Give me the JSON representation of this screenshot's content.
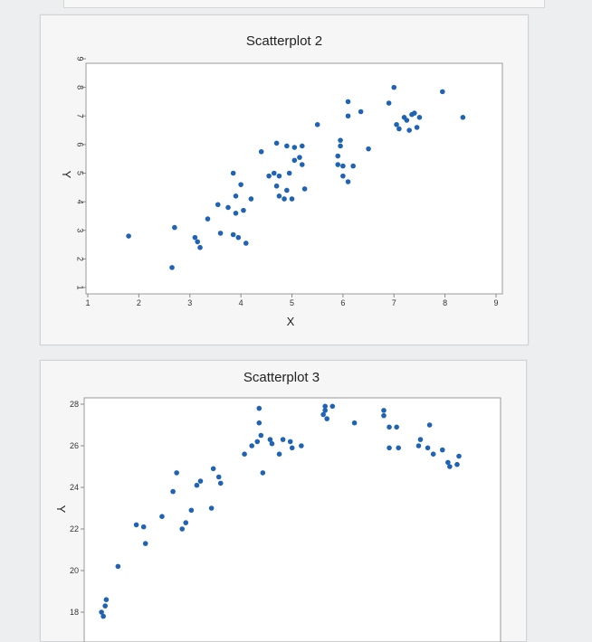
{
  "chart_data": [
    {
      "type": "scatter",
      "title": "Scatterplot 2",
      "xlabel": "X",
      "ylabel": "Y",
      "xlim": [
        1,
        9
      ],
      "ylim": [
        1,
        9
      ],
      "xticks": [
        "1",
        "2",
        "3",
        "4",
        "5",
        "6",
        "7",
        "8",
        "9"
      ],
      "yticks": [
        "1",
        "2",
        "3",
        "4",
        "5",
        "6",
        "7",
        "8",
        "9"
      ],
      "color": "#1f63b5",
      "points": [
        {
          "x": 1.8,
          "y": 2.8
        },
        {
          "x": 2.65,
          "y": 1.7
        },
        {
          "x": 2.7,
          "y": 3.1
        },
        {
          "x": 3.1,
          "y": 2.75
        },
        {
          "x": 3.15,
          "y": 2.6
        },
        {
          "x": 3.2,
          "y": 2.4
        },
        {
          "x": 3.35,
          "y": 3.4
        },
        {
          "x": 3.55,
          "y": 3.9
        },
        {
          "x": 3.6,
          "y": 2.9
        },
        {
          "x": 3.75,
          "y": 3.8
        },
        {
          "x": 3.85,
          "y": 2.85
        },
        {
          "x": 3.85,
          "y": 5.0
        },
        {
          "x": 3.9,
          "y": 4.2
        },
        {
          "x": 3.9,
          "y": 3.6
        },
        {
          "x": 3.95,
          "y": 2.75
        },
        {
          "x": 4.0,
          "y": 4.6
        },
        {
          "x": 4.05,
          "y": 3.7
        },
        {
          "x": 4.1,
          "y": 2.55
        },
        {
          "x": 4.2,
          "y": 4.1
        },
        {
          "x": 4.4,
          "y": 5.75
        },
        {
          "x": 4.55,
          "y": 4.9
        },
        {
          "x": 4.65,
          "y": 5.0
        },
        {
          "x": 4.7,
          "y": 6.05
        },
        {
          "x": 4.75,
          "y": 4.9
        },
        {
          "x": 4.7,
          "y": 4.55
        },
        {
          "x": 4.75,
          "y": 4.2
        },
        {
          "x": 4.85,
          "y": 4.1
        },
        {
          "x": 4.9,
          "y": 5.95
        },
        {
          "x": 4.95,
          "y": 5.0
        },
        {
          "x": 4.9,
          "y": 4.4
        },
        {
          "x": 5.0,
          "y": 4.1
        },
        {
          "x": 5.05,
          "y": 5.9
        },
        {
          "x": 5.05,
          "y": 5.45
        },
        {
          "x": 5.15,
          "y": 5.55
        },
        {
          "x": 5.2,
          "y": 5.95
        },
        {
          "x": 5.2,
          "y": 5.3
        },
        {
          "x": 5.25,
          "y": 4.45
        },
        {
          "x": 5.5,
          "y": 6.7
        },
        {
          "x": 5.95,
          "y": 6.15
        },
        {
          "x": 5.95,
          "y": 5.95
        },
        {
          "x": 5.9,
          "y": 5.6
        },
        {
          "x": 5.9,
          "y": 5.3
        },
        {
          "x": 6.0,
          "y": 5.25
        },
        {
          "x": 6.0,
          "y": 4.9
        },
        {
          "x": 6.1,
          "y": 7.0
        },
        {
          "x": 6.1,
          "y": 7.5
        },
        {
          "x": 6.1,
          "y": 4.7
        },
        {
          "x": 6.2,
          "y": 5.25
        },
        {
          "x": 6.35,
          "y": 7.15
        },
        {
          "x": 6.5,
          "y": 5.85
        },
        {
          "x": 6.9,
          "y": 7.45
        },
        {
          "x": 7.0,
          "y": 8.0
        },
        {
          "x": 7.05,
          "y": 6.7
        },
        {
          "x": 7.1,
          "y": 6.55
        },
        {
          "x": 7.2,
          "y": 6.95
        },
        {
          "x": 7.25,
          "y": 6.85
        },
        {
          "x": 7.3,
          "y": 6.5
        },
        {
          "x": 7.35,
          "y": 7.05
        },
        {
          "x": 7.4,
          "y": 7.1
        },
        {
          "x": 7.45,
          "y": 6.6
        },
        {
          "x": 7.5,
          "y": 6.95
        },
        {
          "x": 7.95,
          "y": 7.85
        },
        {
          "x": 8.35,
          "y": 6.95
        }
      ]
    },
    {
      "type": "scatter",
      "title": "Scatterplot 3",
      "xlabel": "",
      "ylabel": "Y",
      "ylim": [
        17.5,
        28.5
      ],
      "yticks": [
        "18",
        "20",
        "22",
        "24",
        "26",
        "28"
      ],
      "color": "#1f63b5",
      "points": [
        {
          "x": 0.25,
          "y": 18.0
        },
        {
          "x": 0.3,
          "y": 17.8
        },
        {
          "x": 0.35,
          "y": 18.3
        },
        {
          "x": 0.38,
          "y": 18.6
        },
        {
          "x": 0.7,
          "y": 20.2
        },
        {
          "x": 1.2,
          "y": 22.2
        },
        {
          "x": 1.4,
          "y": 22.1
        },
        {
          "x": 1.45,
          "y": 21.3
        },
        {
          "x": 1.9,
          "y": 22.6
        },
        {
          "x": 2.2,
          "y": 23.8
        },
        {
          "x": 2.3,
          "y": 24.7
        },
        {
          "x": 2.45,
          "y": 22.0
        },
        {
          "x": 2.55,
          "y": 22.3
        },
        {
          "x": 2.7,
          "y": 22.9
        },
        {
          "x": 2.85,
          "y": 24.1
        },
        {
          "x": 2.95,
          "y": 24.3
        },
        {
          "x": 3.25,
          "y": 23.0
        },
        {
          "x": 3.3,
          "y": 24.9
        },
        {
          "x": 3.45,
          "y": 24.5
        },
        {
          "x": 3.5,
          "y": 24.2
        },
        {
          "x": 4.15,
          "y": 25.6
        },
        {
          "x": 4.35,
          "y": 26.0
        },
        {
          "x": 4.5,
          "y": 26.2
        },
        {
          "x": 4.55,
          "y": 27.1
        },
        {
          "x": 4.55,
          "y": 27.8
        },
        {
          "x": 4.6,
          "y": 26.5
        },
        {
          "x": 4.65,
          "y": 24.7
        },
        {
          "x": 4.85,
          "y": 26.3
        },
        {
          "x": 4.9,
          "y": 26.1
        },
        {
          "x": 5.1,
          "y": 25.6
        },
        {
          "x": 5.2,
          "y": 26.3
        },
        {
          "x": 5.4,
          "y": 26.2
        },
        {
          "x": 5.45,
          "y": 25.9
        },
        {
          "x": 5.7,
          "y": 26.0
        },
        {
          "x": 6.3,
          "y": 27.5
        },
        {
          "x": 6.35,
          "y": 27.7
        },
        {
          "x": 6.35,
          "y": 27.9
        },
        {
          "x": 6.4,
          "y": 27.3
        },
        {
          "x": 6.55,
          "y": 27.9
        },
        {
          "x": 7.15,
          "y": 27.1
        },
        {
          "x": 7.95,
          "y": 27.7
        },
        {
          "x": 7.95,
          "y": 27.45
        },
        {
          "x": 8.1,
          "y": 26.9
        },
        {
          "x": 8.1,
          "y": 25.9
        },
        {
          "x": 8.3,
          "y": 26.9
        },
        {
          "x": 8.35,
          "y": 25.9
        },
        {
          "x": 8.9,
          "y": 26.0
        },
        {
          "x": 8.95,
          "y": 26.3
        },
        {
          "x": 9.15,
          "y": 25.9
        },
        {
          "x": 9.2,
          "y": 27.0
        },
        {
          "x": 9.3,
          "y": 25.6
        },
        {
          "x": 9.55,
          "y": 25.8
        },
        {
          "x": 9.7,
          "y": 25.2
        },
        {
          "x": 9.75,
          "y": 25.0
        },
        {
          "x": 9.95,
          "y": 25.1
        },
        {
          "x": 10.0,
          "y": 25.5
        }
      ]
    }
  ]
}
